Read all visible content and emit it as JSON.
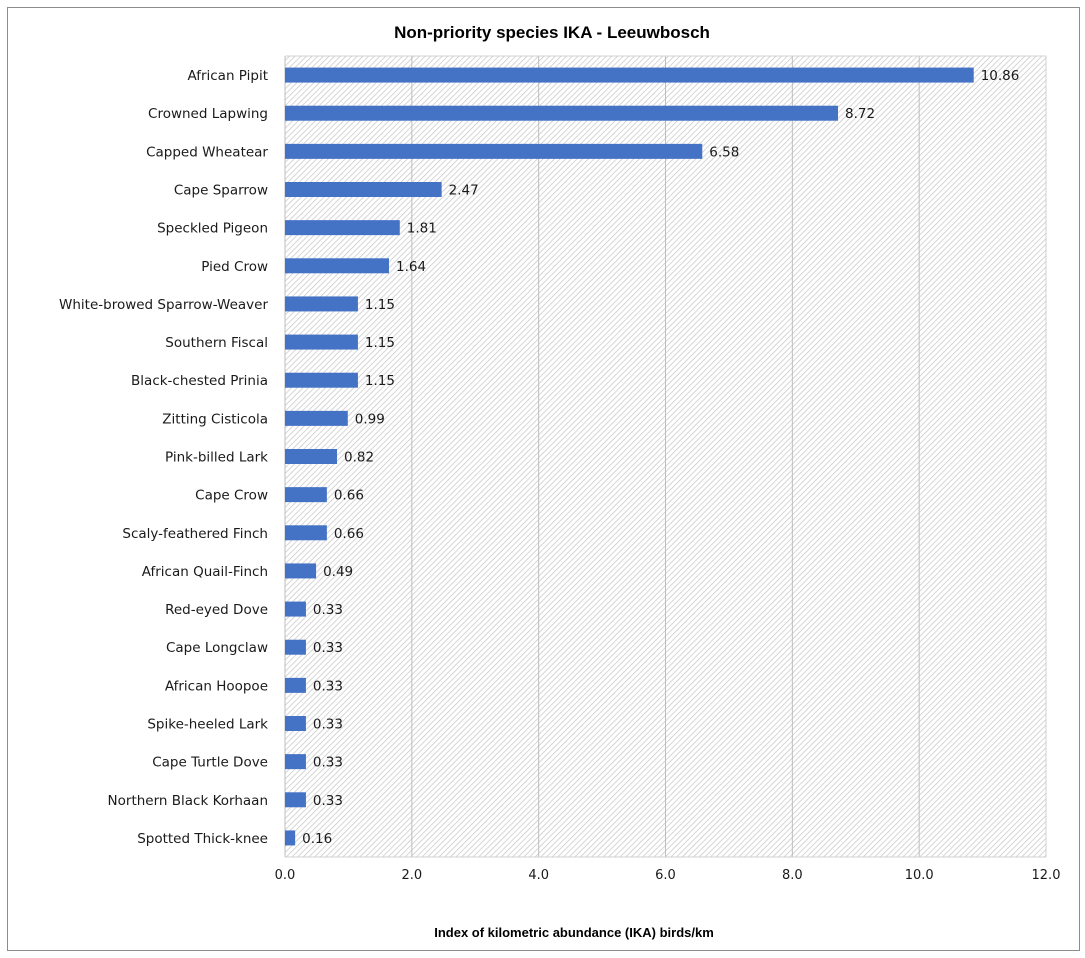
{
  "chart_data": {
    "type": "bar",
    "orientation": "horizontal",
    "title": "Non-priority species IKA - Leeuwbosch",
    "xlabel": "Index of kilometric abundance (IKA) birds/km",
    "ylabel": "",
    "xlim": [
      0,
      12
    ],
    "x_ticks": [
      "0.0",
      "2.0",
      "4.0",
      "6.0",
      "8.0",
      "10.0",
      "12.0"
    ],
    "grid": "vertical",
    "legend": "none",
    "bar_color": "#4472C4",
    "categories": [
      "African Pipit",
      "Crowned Lapwing",
      "Capped Wheatear",
      "Cape Sparrow",
      "Speckled Pigeon",
      "Pied Crow",
      "White-browed Sparrow-Weaver",
      "Southern Fiscal",
      "Black-chested Prinia",
      "Zitting Cisticola",
      "Pink-billed Lark",
      "Cape Crow",
      "Scaly-feathered Finch",
      "African Quail-Finch",
      "Red-eyed Dove",
      "Cape Longclaw",
      "African Hoopoe",
      "Spike-heeled Lark",
      "Cape Turtle Dove",
      "Northern Black Korhaan",
      "Spotted Thick-knee"
    ],
    "values": [
      10.86,
      8.72,
      6.58,
      2.47,
      1.81,
      1.64,
      1.15,
      1.15,
      1.15,
      0.99,
      0.82,
      0.66,
      0.66,
      0.49,
      0.33,
      0.33,
      0.33,
      0.33,
      0.33,
      0.33,
      0.16
    ],
    "value_labels": [
      "10.86",
      "8.72",
      "6.58",
      "2.47",
      "1.81",
      "1.64",
      "1.15",
      "1.15",
      "1.15",
      "0.99",
      "0.82",
      "0.66",
      "0.66",
      "0.49",
      "0.33",
      "0.33",
      "0.33",
      "0.33",
      "0.33",
      "0.33",
      "0.16"
    ]
  }
}
